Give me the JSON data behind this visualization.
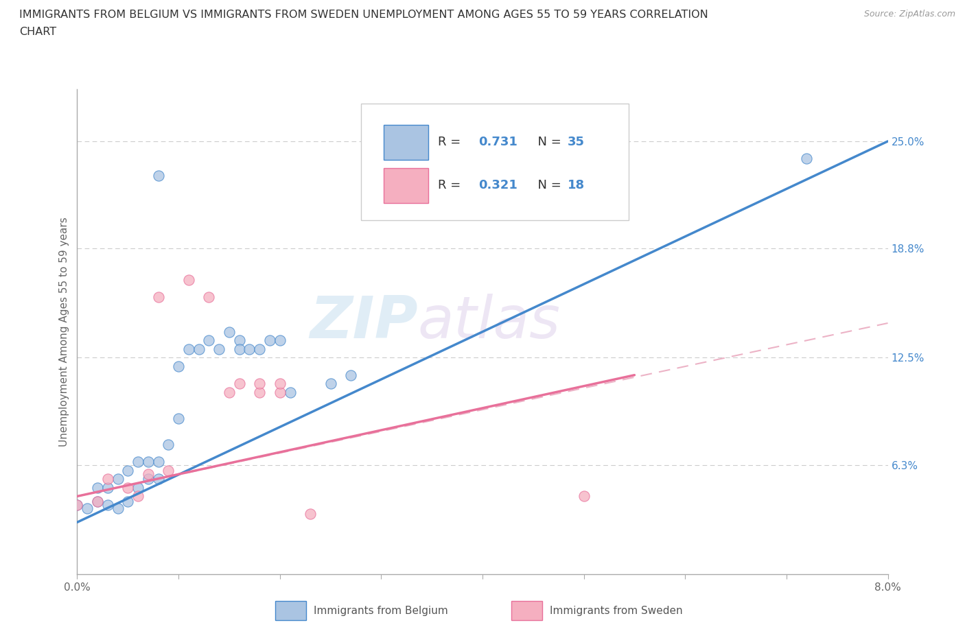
{
  "title_line1": "IMMIGRANTS FROM BELGIUM VS IMMIGRANTS FROM SWEDEN UNEMPLOYMENT AMONG AGES 55 TO 59 YEARS CORRELATION",
  "title_line2": "CHART",
  "source": "Source: ZipAtlas.com",
  "ylabel": "Unemployment Among Ages 55 to 59 years",
  "xlim": [
    0.0,
    0.08
  ],
  "ylim": [
    0.0,
    0.28
  ],
  "x_ticks": [
    0.0,
    0.01,
    0.02,
    0.03,
    0.04,
    0.05,
    0.06,
    0.07,
    0.08
  ],
  "x_tick_labels": [
    "0.0%",
    "",
    "",
    "",
    "",
    "",
    "",
    "",
    "8.0%"
  ],
  "y_tick_labels_right": [
    "6.3%",
    "12.5%",
    "18.8%",
    "25.0%"
  ],
  "y_tick_positions_right": [
    0.063,
    0.125,
    0.188,
    0.25
  ],
  "belgium_color": "#aac4e2",
  "sweden_color": "#f5afc0",
  "belgium_line_color": "#4488cc",
  "sweden_line_color": "#e8709a",
  "sweden_dash_color": "#e8a0b8",
  "r_belgium": 0.731,
  "n_belgium": 35,
  "r_sweden": 0.321,
  "n_sweden": 18,
  "watermark_zip": "ZIP",
  "watermark_atlas": "atlas",
  "belgium_scatter_x": [
    0.0,
    0.001,
    0.002,
    0.002,
    0.003,
    0.003,
    0.004,
    0.004,
    0.005,
    0.005,
    0.006,
    0.006,
    0.007,
    0.007,
    0.008,
    0.008,
    0.009,
    0.01,
    0.01,
    0.011,
    0.012,
    0.013,
    0.014,
    0.015,
    0.016,
    0.016,
    0.017,
    0.018,
    0.019,
    0.02,
    0.021,
    0.025,
    0.027,
    0.072,
    0.008
  ],
  "belgium_scatter_y": [
    0.04,
    0.038,
    0.042,
    0.05,
    0.04,
    0.05,
    0.038,
    0.055,
    0.042,
    0.06,
    0.05,
    0.065,
    0.055,
    0.065,
    0.055,
    0.065,
    0.075,
    0.09,
    0.12,
    0.13,
    0.13,
    0.135,
    0.13,
    0.14,
    0.135,
    0.13,
    0.13,
    0.13,
    0.135,
    0.135,
    0.105,
    0.11,
    0.115,
    0.24,
    0.23
  ],
  "sweden_scatter_x": [
    0.0,
    0.002,
    0.003,
    0.005,
    0.006,
    0.007,
    0.008,
    0.009,
    0.011,
    0.013,
    0.015,
    0.016,
    0.018,
    0.018,
    0.02,
    0.02,
    0.023,
    0.05
  ],
  "sweden_scatter_y": [
    0.04,
    0.042,
    0.055,
    0.05,
    0.045,
    0.058,
    0.16,
    0.06,
    0.17,
    0.16,
    0.105,
    0.11,
    0.105,
    0.11,
    0.105,
    0.11,
    0.035,
    0.045
  ],
  "belgium_trend_x": [
    0.0,
    0.08
  ],
  "belgium_trend_y": [
    0.03,
    0.25
  ],
  "sweden_trend_x": [
    0.0,
    0.055
  ],
  "sweden_trend_y": [
    0.045,
    0.115
  ],
  "sweden_ext_trend_x": [
    0.0,
    0.08
  ],
  "sweden_ext_trend_y": [
    0.045,
    0.145
  ],
  "background_color": "#ffffff",
  "grid_color": "#cccccc"
}
